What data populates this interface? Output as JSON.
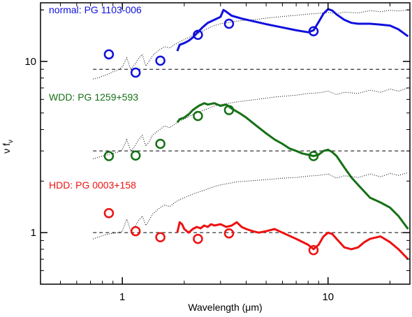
{
  "chart_data": {
    "type": "line",
    "xlabel": "Wavelength (μm)",
    "ylabel": "ν f",
    "ylabel_subscript": "ν",
    "x_scale": "log",
    "y_scale": "log",
    "xlim": [
      0.4,
      25
    ],
    "ylim": [
      0.5,
      22
    ],
    "x_ticks": [
      {
        "value": 1,
        "label": "1"
      },
      {
        "value": 10,
        "label": "10"
      }
    ],
    "y_ticks": [
      {
        "value": 1,
        "label": "1"
      },
      {
        "value": 10,
        "label": "10"
      }
    ],
    "grid": false,
    "legend": "none",
    "series": [
      {
        "name": "normal: PG 1103-006",
        "color": "#1010dd",
        "reference_level": 9.0,
        "spectrum_x": [
          1.85,
          1.9,
          2.0,
          2.1,
          2.2,
          2.3,
          2.45,
          2.6,
          2.8,
          3.0,
          3.1,
          3.2,
          3.4,
          3.8,
          4.3,
          5.0,
          6.0,
          7.0,
          8.0,
          8.5,
          9.0,
          9.5,
          10.0,
          10.5,
          11.0,
          12.0,
          13.0,
          14.0,
          16.0,
          18.0,
          20.0,
          22.0,
          24.5
        ],
        "spectrum_y": [
          11.5,
          12.5,
          12.8,
          13.2,
          13.8,
          14.6,
          15.8,
          16.8,
          17.5,
          18.2,
          20.0,
          19.5,
          18.5,
          17.8,
          17.2,
          16.5,
          15.8,
          15.2,
          14.8,
          15.2,
          17.0,
          19.0,
          20.2,
          19.8,
          18.8,
          17.5,
          16.8,
          16.6,
          16.6,
          16.4,
          16.2,
          15.4,
          14.0
        ],
        "template_x": [
          0.72,
          0.76,
          0.8,
          0.85,
          0.9,
          0.95,
          1.0,
          1.05,
          1.1,
          1.15,
          1.2,
          1.25,
          1.3,
          1.35,
          1.4,
          1.5,
          1.6,
          1.7,
          1.8,
          1.9,
          2.0,
          2.2,
          2.4,
          2.6,
          2.8,
          3.0,
          3.3,
          3.6,
          4.0,
          4.5,
          5.0,
          5.5,
          6.0,
          7.0,
          8.0,
          9.0,
          10.0,
          11.0,
          12.0,
          14.0,
          16.0,
          18.0,
          20.0,
          22.0,
          24.5
        ],
        "template_y": [
          7.9,
          8.0,
          8.2,
          8.4,
          8.7,
          8.9,
          9.3,
          10.5,
          9.0,
          9.6,
          10.4,
          11.0,
          9.4,
          10.0,
          10.8,
          11.6,
          12.2,
          12.0,
          12.6,
          13.0,
          13.4,
          14.2,
          14.8,
          15.6,
          16.2,
          16.6,
          16.9,
          17.2,
          17.4,
          17.6,
          17.9,
          18.1,
          18.3,
          18.6,
          18.9,
          19.1,
          19.3,
          19.0,
          19.4,
          19.2,
          19.8,
          19.5,
          19.9,
          19.7,
          20.0
        ],
        "photometry_x": [
          0.86,
          1.16,
          1.53,
          2.33,
          3.3,
          8.5
        ],
        "photometry_y": [
          11.0,
          8.6,
          10.1,
          14.3,
          16.6,
          15.0
        ]
      },
      {
        "name": "WDD: PG 1259+593",
        "color": "#157015",
        "reference_level": 3.0,
        "spectrum_x": [
          1.85,
          1.9,
          2.0,
          2.1,
          2.2,
          2.35,
          2.5,
          2.6,
          2.8,
          3.0,
          3.2,
          3.4,
          3.7,
          4.0,
          4.5,
          5.0,
          5.5,
          6.0,
          6.5,
          7.0,
          7.5,
          8.0,
          8.5,
          9.0,
          9.5,
          10.0,
          10.5,
          11.0,
          12.0,
          13.0,
          14.0,
          16.0,
          18.0,
          20.0,
          22.0,
          24.5
        ],
        "spectrum_y": [
          4.4,
          4.6,
          4.7,
          4.9,
          5.2,
          5.5,
          5.7,
          5.6,
          5.7,
          5.5,
          5.6,
          5.3,
          5.0,
          4.7,
          4.2,
          3.8,
          3.5,
          3.3,
          3.1,
          3.0,
          2.9,
          2.85,
          2.8,
          2.85,
          3.0,
          3.05,
          2.95,
          2.8,
          2.4,
          2.1,
          1.9,
          1.6,
          1.5,
          1.4,
          1.25,
          1.05
        ],
        "template_x": [
          0.72,
          0.76,
          0.8,
          0.85,
          0.9,
          0.95,
          1.0,
          1.05,
          1.1,
          1.15,
          1.2,
          1.25,
          1.3,
          1.35,
          1.4,
          1.5,
          1.6,
          1.7,
          1.8,
          1.9,
          2.0,
          2.2,
          2.4,
          2.6,
          2.8,
          3.0,
          3.3,
          3.6,
          4.0,
          4.5,
          5.0,
          5.5,
          6.0,
          7.0,
          8.0,
          9.0,
          10.0,
          11.0,
          12.0,
          14.0,
          16.0,
          18.0,
          20.0,
          22.0,
          24.5
        ],
        "template_y": [
          2.7,
          2.75,
          2.8,
          2.85,
          2.9,
          2.95,
          3.05,
          3.5,
          3.0,
          3.2,
          3.5,
          3.7,
          3.2,
          3.4,
          3.7,
          3.95,
          4.2,
          4.1,
          4.3,
          4.5,
          4.6,
          4.9,
          5.1,
          5.3,
          5.5,
          5.6,
          5.7,
          5.8,
          5.9,
          6.0,
          6.1,
          6.2,
          6.25,
          6.35,
          6.5,
          6.55,
          6.7,
          6.4,
          6.6,
          6.5,
          6.8,
          6.6,
          6.9,
          6.7,
          7.0
        ],
        "photometry_x": [
          0.86,
          1.16,
          1.53,
          2.33,
          3.3,
          8.5
        ],
        "photometry_y": [
          2.8,
          2.82,
          3.3,
          4.8,
          5.2,
          2.8
        ]
      },
      {
        "name": "HDD: PG 0003+158",
        "color": "#ee1111",
        "reference_level": 1.0,
        "spectrum_x": [
          1.85,
          1.9,
          1.95,
          2.0,
          2.1,
          2.2,
          2.3,
          2.4,
          2.5,
          2.6,
          2.7,
          2.8,
          3.0,
          3.2,
          3.4,
          3.6,
          3.8,
          4.0,
          4.3,
          4.6,
          5.0,
          5.5,
          6.0,
          7.0,
          8.0,
          8.5,
          9.0,
          9.5,
          10.0,
          10.5,
          11.0,
          12.0,
          13.0,
          14.0,
          15.0,
          16.0,
          18.0,
          20.0,
          22.0,
          24.5
        ],
        "spectrum_y": [
          1.0,
          1.15,
          1.12,
          1.05,
          1.0,
          1.05,
          1.08,
          1.06,
          1.1,
          1.08,
          1.12,
          1.1,
          1.12,
          1.08,
          1.1,
          1.15,
          1.08,
          1.05,
          1.02,
          1.0,
          1.02,
          1.05,
          1.0,
          0.92,
          0.85,
          0.8,
          0.85,
          0.95,
          1.0,
          0.98,
          0.92,
          0.82,
          0.8,
          0.82,
          0.88,
          0.92,
          0.95,
          0.88,
          0.8,
          0.7
        ],
        "template_x": [
          0.72,
          0.76,
          0.8,
          0.85,
          0.9,
          0.95,
          1.0,
          1.05,
          1.1,
          1.15,
          1.2,
          1.25,
          1.3,
          1.35,
          1.4,
          1.5,
          1.6,
          1.7,
          1.8,
          1.9,
          2.0,
          2.2,
          2.4,
          2.6,
          2.8,
          3.0,
          3.3,
          3.6,
          4.0,
          4.5,
          5.0,
          5.5,
          6.0,
          7.0,
          8.0,
          9.0,
          10.0,
          11.0,
          12.0,
          14.0,
          16.0,
          18.0,
          20.0,
          22.0,
          24.5
        ],
        "template_y": [
          0.92,
          0.94,
          0.96,
          0.98,
          0.99,
          1.0,
          1.02,
          1.2,
          1.02,
          1.08,
          1.18,
          1.25,
          1.1,
          1.18,
          1.28,
          1.38,
          1.45,
          1.42,
          1.5,
          1.56,
          1.6,
          1.68,
          1.74,
          1.8,
          1.86,
          1.9,
          1.94,
          1.98,
          2.0,
          2.02,
          2.04,
          2.06,
          2.08,
          2.1,
          2.14,
          2.16,
          2.2,
          2.08,
          2.15,
          2.1,
          2.2,
          2.12,
          2.22,
          2.16,
          2.24
        ],
        "photometry_x": [
          0.86,
          1.16,
          1.53,
          2.33,
          3.3,
          8.5
        ],
        "photometry_y": [
          1.3,
          1.02,
          0.94,
          0.92,
          0.99,
          0.79
        ]
      }
    ]
  }
}
